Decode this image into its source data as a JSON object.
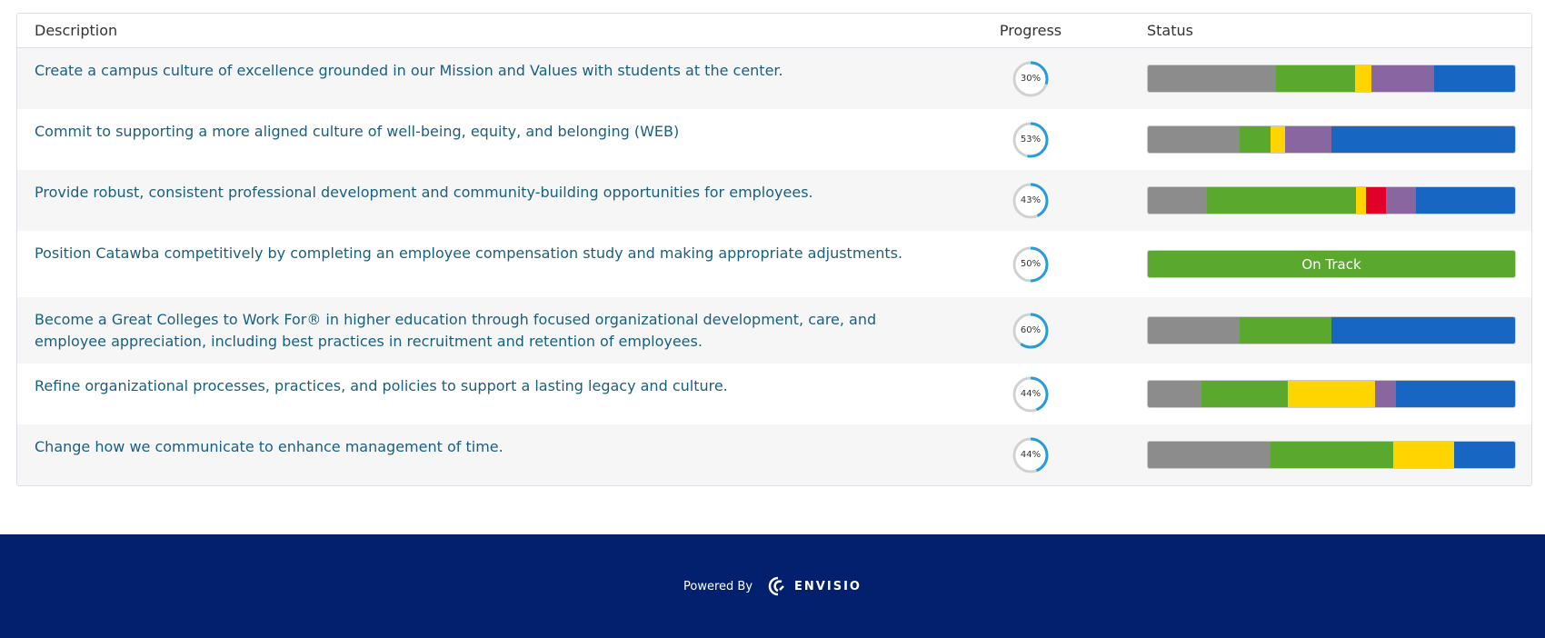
{
  "table": {
    "headers": {
      "description": "Description",
      "progress": "Progress",
      "status": "Status"
    },
    "status_colors": {
      "not_started": "#8c8c8c",
      "on_track": "#5aa82e",
      "some_disruption": "#ffd400",
      "major_disruption": "#e10027",
      "upcoming": "#8a66a0",
      "completed": "#1766c1"
    },
    "rows": [
      {
        "description": "Create a campus culture of excellence grounded in our Mission and Values with students at the center.",
        "progress": 30,
        "progress_label": "30%",
        "status": [
          [
            "#8c8c8c",
            34.8
          ],
          [
            "#5aa82e",
            21.6
          ],
          [
            "#ffd400",
            4.4
          ],
          [
            "#8a66a0",
            17.3
          ],
          [
            "#1766c1",
            21.9
          ]
        ]
      },
      {
        "description": "Commit to supporting a more aligned culture of well-being, equity, and belonging (WEB)",
        "progress": 53,
        "progress_label": "53%",
        "status": [
          [
            "#8c8c8c",
            24.9
          ],
          [
            "#5aa82e",
            8.4
          ],
          [
            "#ffd400",
            4.1
          ],
          [
            "#8a66a0",
            12.5
          ],
          [
            "#1766c1",
            50.1
          ]
        ]
      },
      {
        "description": "Provide robust, consistent professional development and community-building opportunities for employees.",
        "progress": 43,
        "progress_label": "43%",
        "status": [
          [
            "#8c8c8c",
            16.2
          ],
          [
            "#5aa82e",
            40.5
          ],
          [
            "#ffd400",
            2.7
          ],
          [
            "#e10027",
            5.5
          ],
          [
            "#8a66a0",
            8.1
          ],
          [
            "#1766c1",
            27.0
          ]
        ]
      },
      {
        "description": "Position Catawba competitively by completing an employee compensation study and making appropriate adjustments.",
        "progress": 50,
        "progress_label": "50%",
        "status": [
          [
            "#5aa82e",
            100
          ]
        ],
        "status_label": "On Track"
      },
      {
        "description": "Become a Great Colleges to Work For® in higher education through focused organizational development, care, and employee appreciation, including best practices in recruitment and retention of employees.",
        "progress": 60,
        "progress_label": "60%",
        "status": [
          [
            "#8c8c8c",
            24.9
          ],
          [
            "#5aa82e",
            25.0
          ],
          [
            "#1766c1",
            50.1
          ]
        ]
      },
      {
        "description": "Refine organizational processes, practices, and policies to support a lasting legacy and culture.",
        "progress": 44,
        "progress_label": "44%",
        "status": [
          [
            "#8c8c8c",
            14.6
          ],
          [
            "#5aa82e",
            23.5
          ],
          [
            "#ffd400",
            23.7
          ],
          [
            "#8a66a0",
            5.8
          ],
          [
            "#1766c1",
            32.4
          ]
        ]
      },
      {
        "description": "Change how we communicate to enhance management of time.",
        "progress": 44,
        "progress_label": "44%",
        "status": [
          [
            "#8c8c8c",
            33.3
          ],
          [
            "#5aa82e",
            33.5
          ],
          [
            "#ffd400",
            16.6
          ],
          [
            "#1766c1",
            16.6
          ]
        ]
      }
    ]
  },
  "footer": {
    "powered_by": "Powered By",
    "brand": "ENVISIO",
    "icon": "envisio-logo-icon"
  }
}
